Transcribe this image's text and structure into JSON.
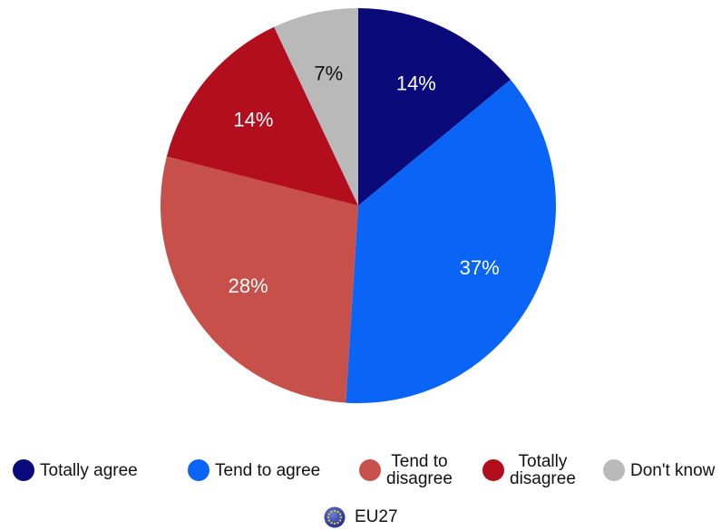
{
  "chart_data": {
    "type": "pie",
    "slices": [
      {
        "label": "Totally agree",
        "value": 14,
        "display": "14%",
        "color": "#0a0a7a"
      },
      {
        "label": "Tend to agree",
        "value": 37,
        "display": "37%",
        "color": "#0a64f5"
      },
      {
        "label": "Tend to\ndisagree",
        "value": 28,
        "display": "28%",
        "color": "#c8504a"
      },
      {
        "label": "Totally\ndisagree",
        "value": 14,
        "display": "14%",
        "color": "#b20e1e"
      },
      {
        "label": "Don't know",
        "value": 7,
        "display": "7%",
        "color": "#b9b9b9"
      }
    ],
    "legend_position": "bottom",
    "footer": "EU27"
  }
}
